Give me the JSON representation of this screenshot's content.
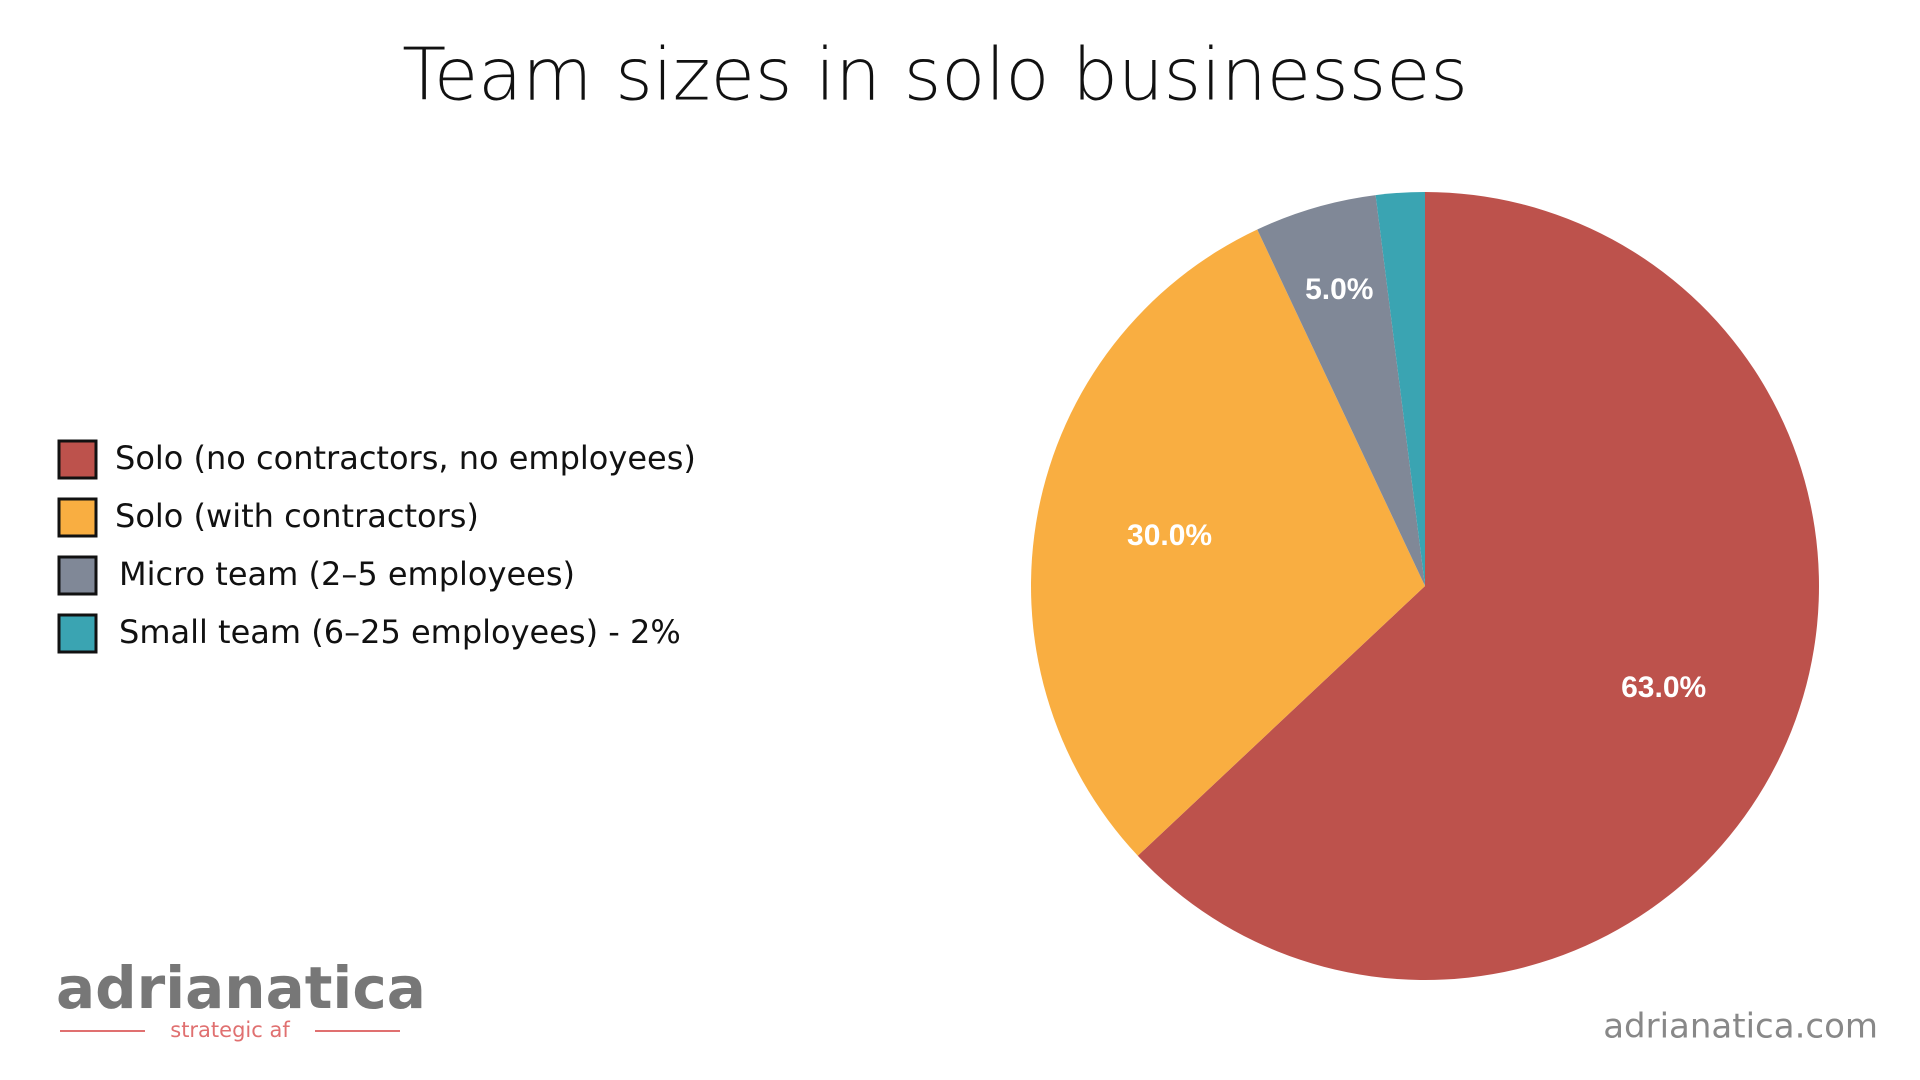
{
  "chart_data": {
    "type": "pie",
    "title": "Team sizes in solo businesses",
    "categories": [
      "Solo (no contractors, no employees)",
      "Solo (with contractors)",
      "Micro team (2–5 employees)",
      "Small team (6–25 employees)  - 2%"
    ],
    "values": [
      63,
      30,
      5,
      2
    ],
    "value_labels": [
      "63.0%",
      "30.0%",
      "5.0%",
      null
    ],
    "colors": [
      "#bd524c",
      "#f9ae41",
      "#808897",
      "#3aa4b2"
    ],
    "legend": "left"
  },
  "logo": {
    "name": "adrianatica",
    "tagline": "strategic af"
  },
  "footer": {
    "url": "adrianatica.com"
  }
}
